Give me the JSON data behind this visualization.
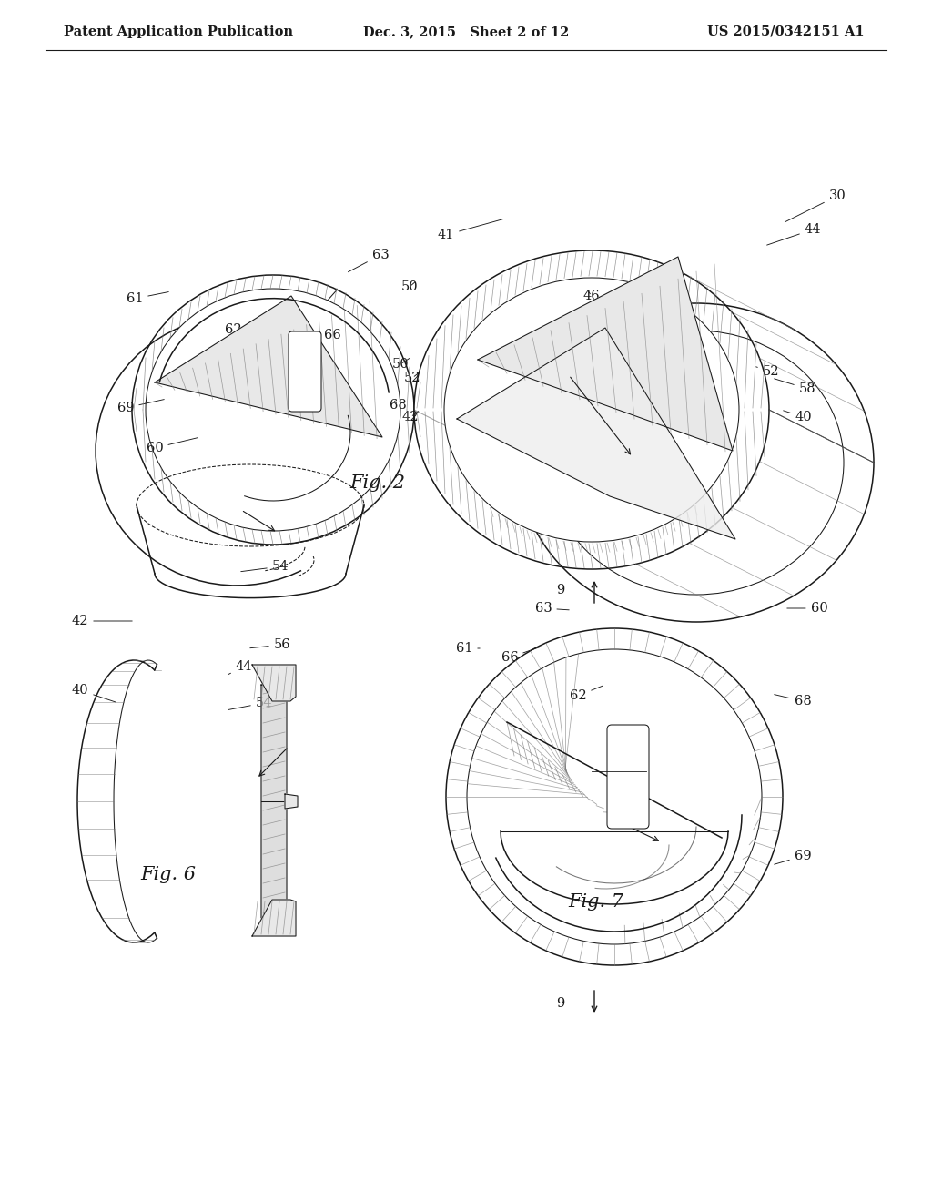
{
  "bg_color": "#ffffff",
  "line_color": "#1a1a1a",
  "header_left": "Patent Application Publication",
  "header_center": "Dec. 3, 2015   Sheet 2 of 12",
  "header_right": "US 2015/0342151 A1",
  "header_fontsize": 10.5,
  "caption_fontsize": 15,
  "label_fontsize": 10.5,
  "fig2_caption": "Fig. 2",
  "fig6_caption": "Fig. 6",
  "fig7_caption": "Fig. 7",
  "hatch_gray": "#aaaaaa",
  "hatch_dark": "#777777",
  "fill_light": "#e8e8e8",
  "fill_mid": "#d0d0d0"
}
